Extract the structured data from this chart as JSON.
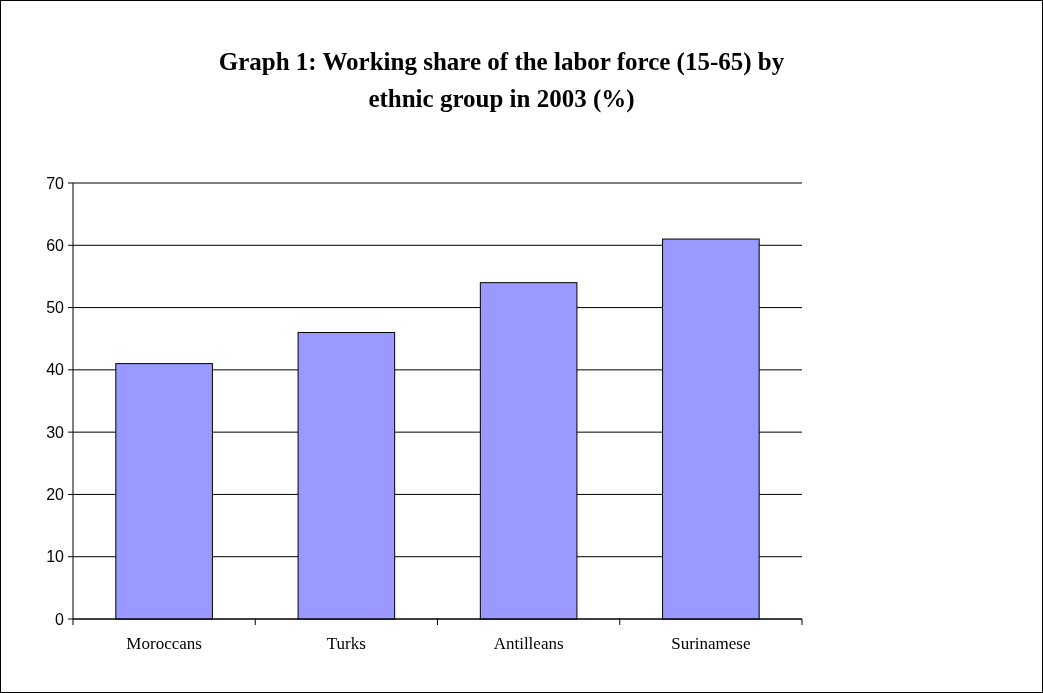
{
  "chart_data": {
    "type": "bar",
    "title": "Graph 1: Working share of the labor force (15-65) by\nethnic group in 2003 (%)",
    "categories": [
      "Moroccans",
      "Turks",
      "Antilleans",
      "Surinamese"
    ],
    "values": [
      41,
      46,
      54,
      61
    ],
    "color": "#9999ff",
    "ylim": [
      0,
      70
    ],
    "yticks": [
      0,
      10,
      20,
      30,
      40,
      50,
      60,
      70
    ],
    "grid": "y"
  }
}
